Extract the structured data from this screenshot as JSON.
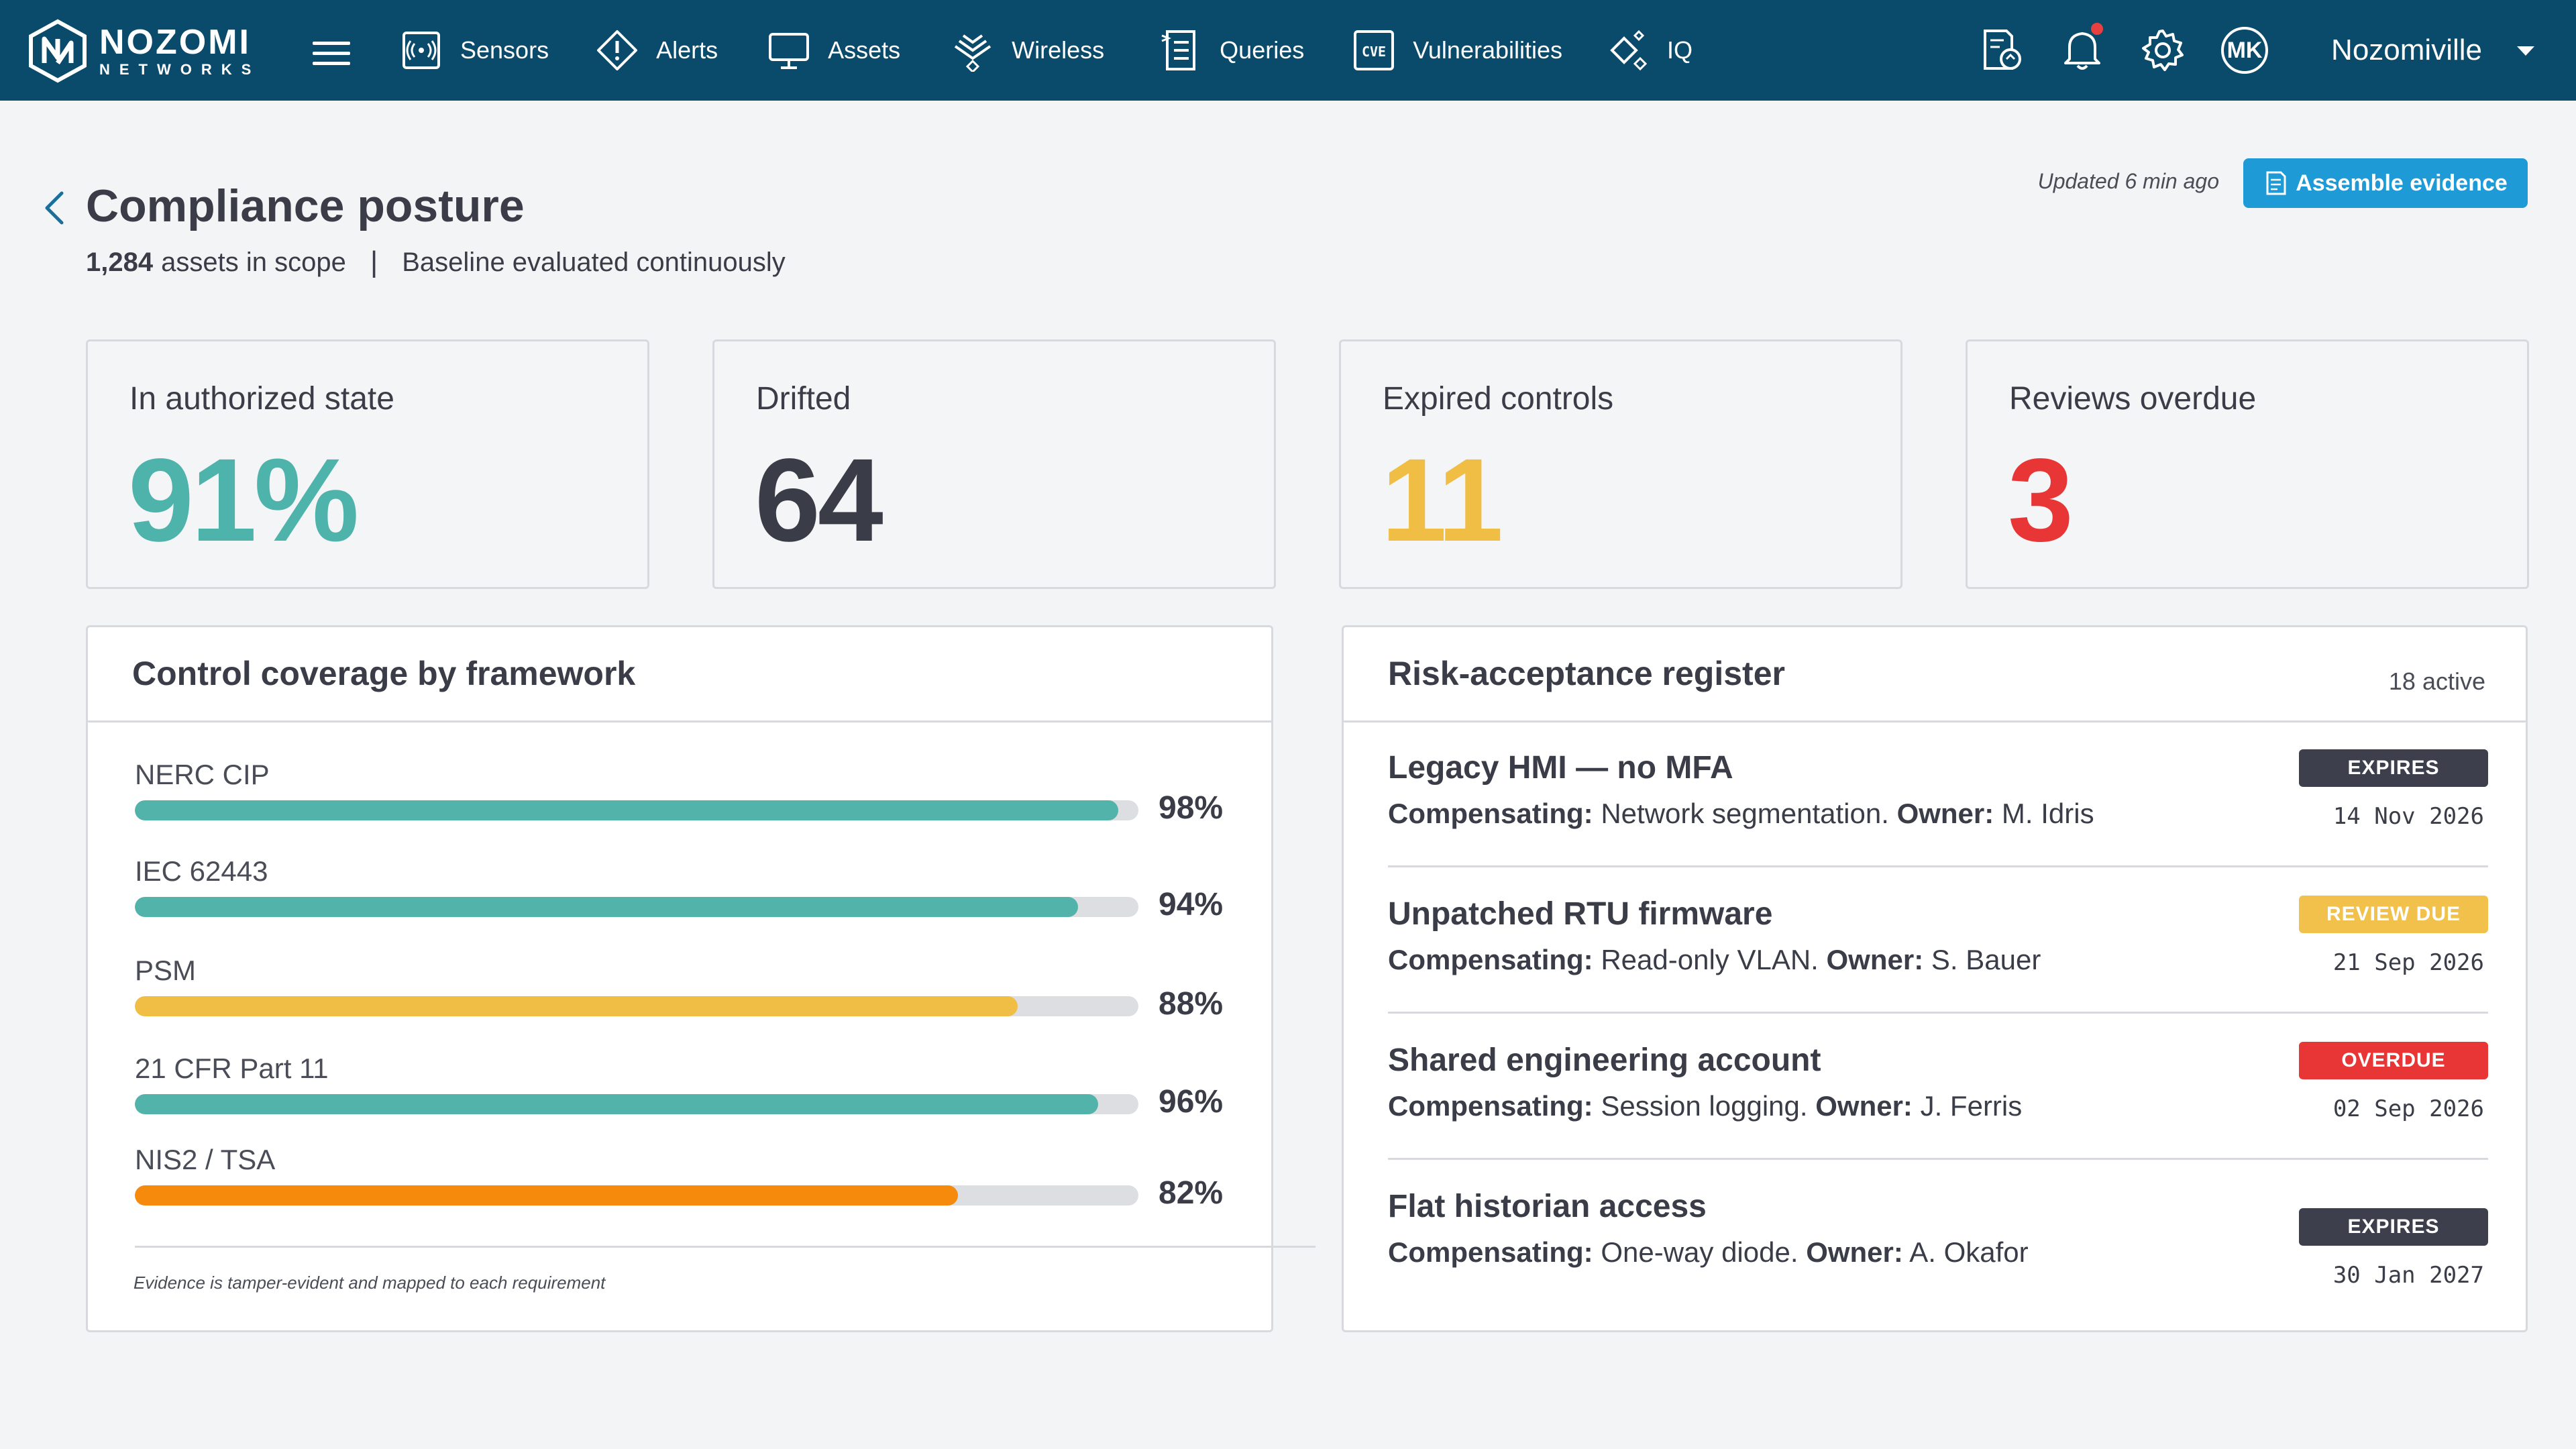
{
  "nav": {
    "logo_line1": "NOZOMI",
    "logo_line2": "NETWORKS",
    "items": [
      {
        "label": "Sensors",
        "icon": "sensor-icon"
      },
      {
        "label": "Alerts",
        "icon": "alert-icon"
      },
      {
        "label": "Assets",
        "icon": "monitor-icon"
      },
      {
        "label": "Wireless",
        "icon": "wireless-icon"
      },
      {
        "label": "Queries",
        "icon": "queries-icon"
      },
      {
        "label": "Vulnerabilities",
        "icon": "cve-icon"
      },
      {
        "label": "IQ",
        "icon": "sparkle-icon"
      }
    ],
    "cve_text": "CVE",
    "avatar_initials": "MK",
    "site": "Nozomiville"
  },
  "header": {
    "title": "Compliance posture",
    "assets_count": "1,284",
    "assets_text": "assets in scope",
    "separator": "|",
    "baseline_text": "Baseline evaluated continuously",
    "updated": "Updated 6 min ago",
    "assemble_button": "Assemble evidence"
  },
  "kpis": [
    {
      "label": "In authorized state",
      "value": "91%",
      "color": "#4eb3aa"
    },
    {
      "label": "Drifted",
      "value": "64",
      "color": "#3a3d47"
    },
    {
      "label": "Expired controls",
      "value": "11",
      "color": "#f0bd45"
    },
    {
      "label": "Reviews overdue",
      "value": "3",
      "color": "#e83535"
    }
  ],
  "coverage": {
    "title": "Control coverage by framework",
    "frameworks": [
      {
        "name": "NERC CIP",
        "percent": 98,
        "label": "98%",
        "color": "#52b3aa"
      },
      {
        "name": "IEC 62443",
        "percent": 94,
        "label": "94%",
        "color": "#52b3aa"
      },
      {
        "name": "PSM",
        "percent": 88,
        "label": "88%",
        "color": "#f0bd45"
      },
      {
        "name": "21 CFR Part 11",
        "percent": 96,
        "label": "96%",
        "color": "#52b3aa"
      },
      {
        "name": "NIS2 / TSA",
        "percent": 82,
        "label": "82%",
        "color": "#f68a0d"
      }
    ],
    "note": "Evidence is tamper-evident and mapped to each requirement"
  },
  "register": {
    "title": "Risk-acceptance register",
    "count": "18 active",
    "compensating_label": "Compensating:",
    "owner_label": "Owner:",
    "items": [
      {
        "title": "Legacy HMI — no MFA",
        "compensating": "Network segmentation.",
        "owner": "M. Idris",
        "badge": "EXPIRES",
        "badge_bg": "#3d404c",
        "badge_fg": "#ffffff",
        "date": "14 Nov 2026"
      },
      {
        "title": "Unpatched RTU firmware",
        "compensating": "Read-only VLAN.",
        "owner": "S. Bauer",
        "badge": "REVIEW DUE",
        "badge_bg": "#f2c14c",
        "badge_fg": "#ffffff",
        "date": "21 Sep 2026"
      },
      {
        "title": "Shared engineering account",
        "compensating": "Session logging.",
        "owner": "J. Ferris",
        "badge": "OVERDUE",
        "badge_bg": "#e83535",
        "badge_fg": "#ffffff",
        "date": "02 Sep 2026"
      },
      {
        "title": "Flat historian access",
        "compensating": "One-way diode.",
        "owner": "A. Okafor",
        "badge": "EXPIRES",
        "badge_bg": "#3d404c",
        "badge_fg": "#ffffff",
        "date": "30 Jan 2027"
      }
    ]
  },
  "colors": {
    "nav_bg": "#0a4a6a",
    "primary": "#1e9ad6",
    "bg": "#f3f4f6"
  }
}
